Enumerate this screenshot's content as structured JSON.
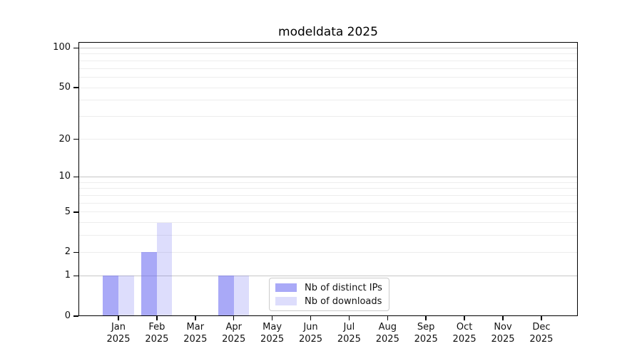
{
  "title": "modeldata 2025",
  "chart_data": {
    "type": "bar",
    "title": "modeldata 2025",
    "categories": [
      "Jan",
      "Feb",
      "Mar",
      "Apr",
      "May",
      "Jun",
      "Jul",
      "Aug",
      "Sep",
      "Oct",
      "Nov",
      "Dec"
    ],
    "category_year": "2025",
    "series": [
      {
        "name": "Nb of distinct IPs",
        "color": "rgba(101,101,240,0.56)",
        "values": [
          1,
          2,
          0,
          1,
          0,
          0,
          0,
          0,
          0,
          0,
          0,
          0
        ]
      },
      {
        "name": "Nb of downloads",
        "color": "rgba(101,101,240,0.22)",
        "values": [
          1,
          4,
          0,
          1,
          0,
          0,
          0,
          0,
          0,
          0,
          0,
          0
        ]
      }
    ],
    "xlabel": "",
    "ylabel": "",
    "y_scale": "log1p",
    "ylim": [
      0,
      111
    ],
    "y_tick_values": [
      0,
      1,
      2,
      5,
      10,
      20,
      50,
      100
    ],
    "y_major_grid_values": [
      1,
      10,
      100
    ],
    "y_minor_grid_values": [
      2,
      3,
      4,
      5,
      6,
      7,
      8,
      9,
      20,
      30,
      40,
      50,
      60,
      70,
      80,
      90
    ],
    "grid": "on",
    "legend_position": "bottom-center"
  },
  "style": {
    "grid_major_color": "#c6c6c6",
    "grid_minor_color": "#ededed",
    "axis_color": "#000000",
    "text_color": "#111111",
    "background": "#ffffff",
    "legend_border_color": "#cbcbcb"
  }
}
